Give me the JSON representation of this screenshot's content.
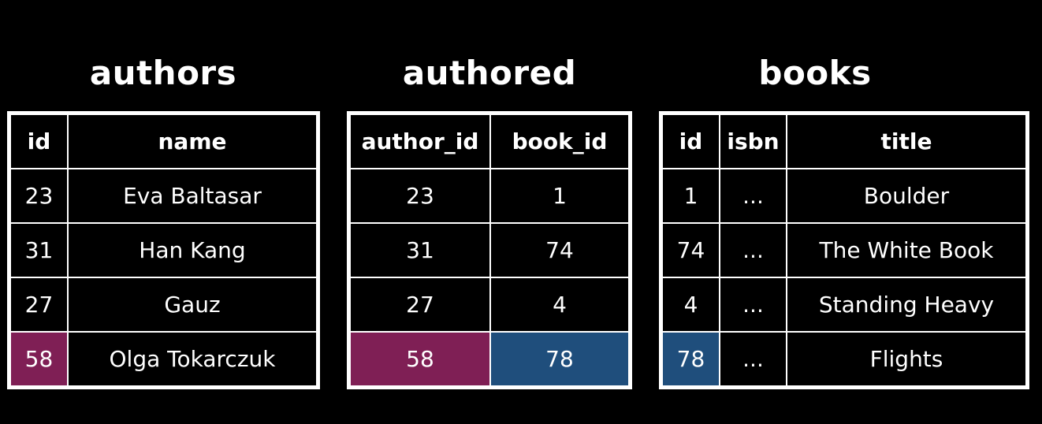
{
  "colors": {
    "background": "#000000",
    "foreground": "#ffffff",
    "author_highlight": "#7f1f55",
    "book_highlight": "#1f4e7c"
  },
  "authors": {
    "title": "authors",
    "headers": [
      "id",
      "name"
    ],
    "rows": [
      [
        "23",
        "Eva Baltasar"
      ],
      [
        "31",
        "Han Kang"
      ],
      [
        "27",
        "Gauz"
      ],
      [
        "58",
        "Olga Tokarczuk"
      ]
    ]
  },
  "authored": {
    "title": "authored",
    "headers": [
      "author_id",
      "book_id"
    ],
    "rows": [
      [
        "23",
        "1"
      ],
      [
        "31",
        "74"
      ],
      [
        "27",
        "4"
      ],
      [
        "58",
        "78"
      ]
    ]
  },
  "books": {
    "title": "books",
    "headers": [
      "id",
      "isbn",
      "title"
    ],
    "rows": [
      [
        "1",
        "...",
        "Boulder"
      ],
      [
        "74",
        "...",
        "The White Book"
      ],
      [
        "4",
        "...",
        "Standing Heavy"
      ],
      [
        "78",
        "...",
        "Flights"
      ]
    ]
  }
}
